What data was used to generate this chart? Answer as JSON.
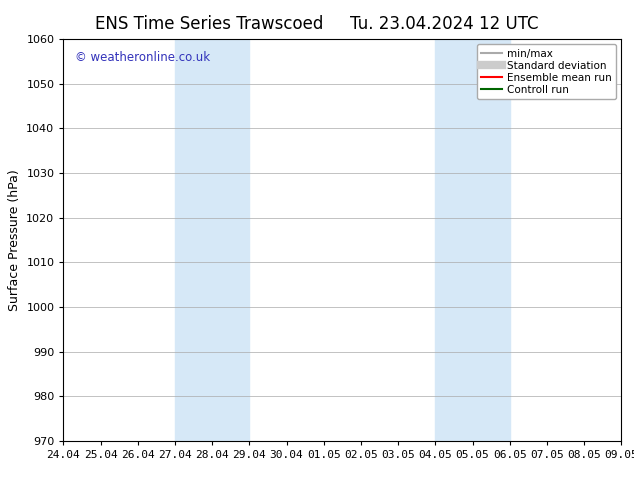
{
  "title_left": "ENS Time Series Trawscoed",
  "title_right": "Tu. 23.04.2024 12 UTC",
  "ylabel": "Surface Pressure (hPa)",
  "ylim": [
    970,
    1060
  ],
  "yticks": [
    970,
    980,
    990,
    1000,
    1010,
    1020,
    1030,
    1040,
    1050,
    1060
  ],
  "x_tick_labels": [
    "24.04",
    "25.04",
    "26.04",
    "27.04",
    "28.04",
    "29.04",
    "30.04",
    "01.05",
    "02.05",
    "03.05",
    "04.05",
    "05.05",
    "06.05",
    "07.05",
    "08.05",
    "09.05"
  ],
  "x_tick_positions": [
    0,
    1,
    2,
    3,
    4,
    5,
    6,
    7,
    8,
    9,
    10,
    11,
    12,
    13,
    14,
    15
  ],
  "shaded_regions": [
    {
      "x_start": 3,
      "x_end": 5,
      "color": "#d6e8f7"
    },
    {
      "x_start": 10,
      "x_end": 12,
      "color": "#d6e8f7"
    }
  ],
  "watermark_text": "© weatheronline.co.uk",
  "watermark_color": "#3333bb",
  "background_color": "#ffffff",
  "legend_items": [
    {
      "label": "min/max",
      "color": "#aaaaaa",
      "lw": 1.5,
      "style": "solid"
    },
    {
      "label": "Standard deviation",
      "color": "#cccccc",
      "lw": 6,
      "style": "solid"
    },
    {
      "label": "Ensemble mean run",
      "color": "#ff0000",
      "lw": 1.5,
      "style": "solid"
    },
    {
      "label": "Controll run",
      "color": "#006600",
      "lw": 1.5,
      "style": "solid"
    }
  ],
  "title_fontsize": 12,
  "tick_fontsize": 8,
  "ylabel_fontsize": 9,
  "watermark_fontsize": 8.5,
  "legend_fontsize": 7.5
}
